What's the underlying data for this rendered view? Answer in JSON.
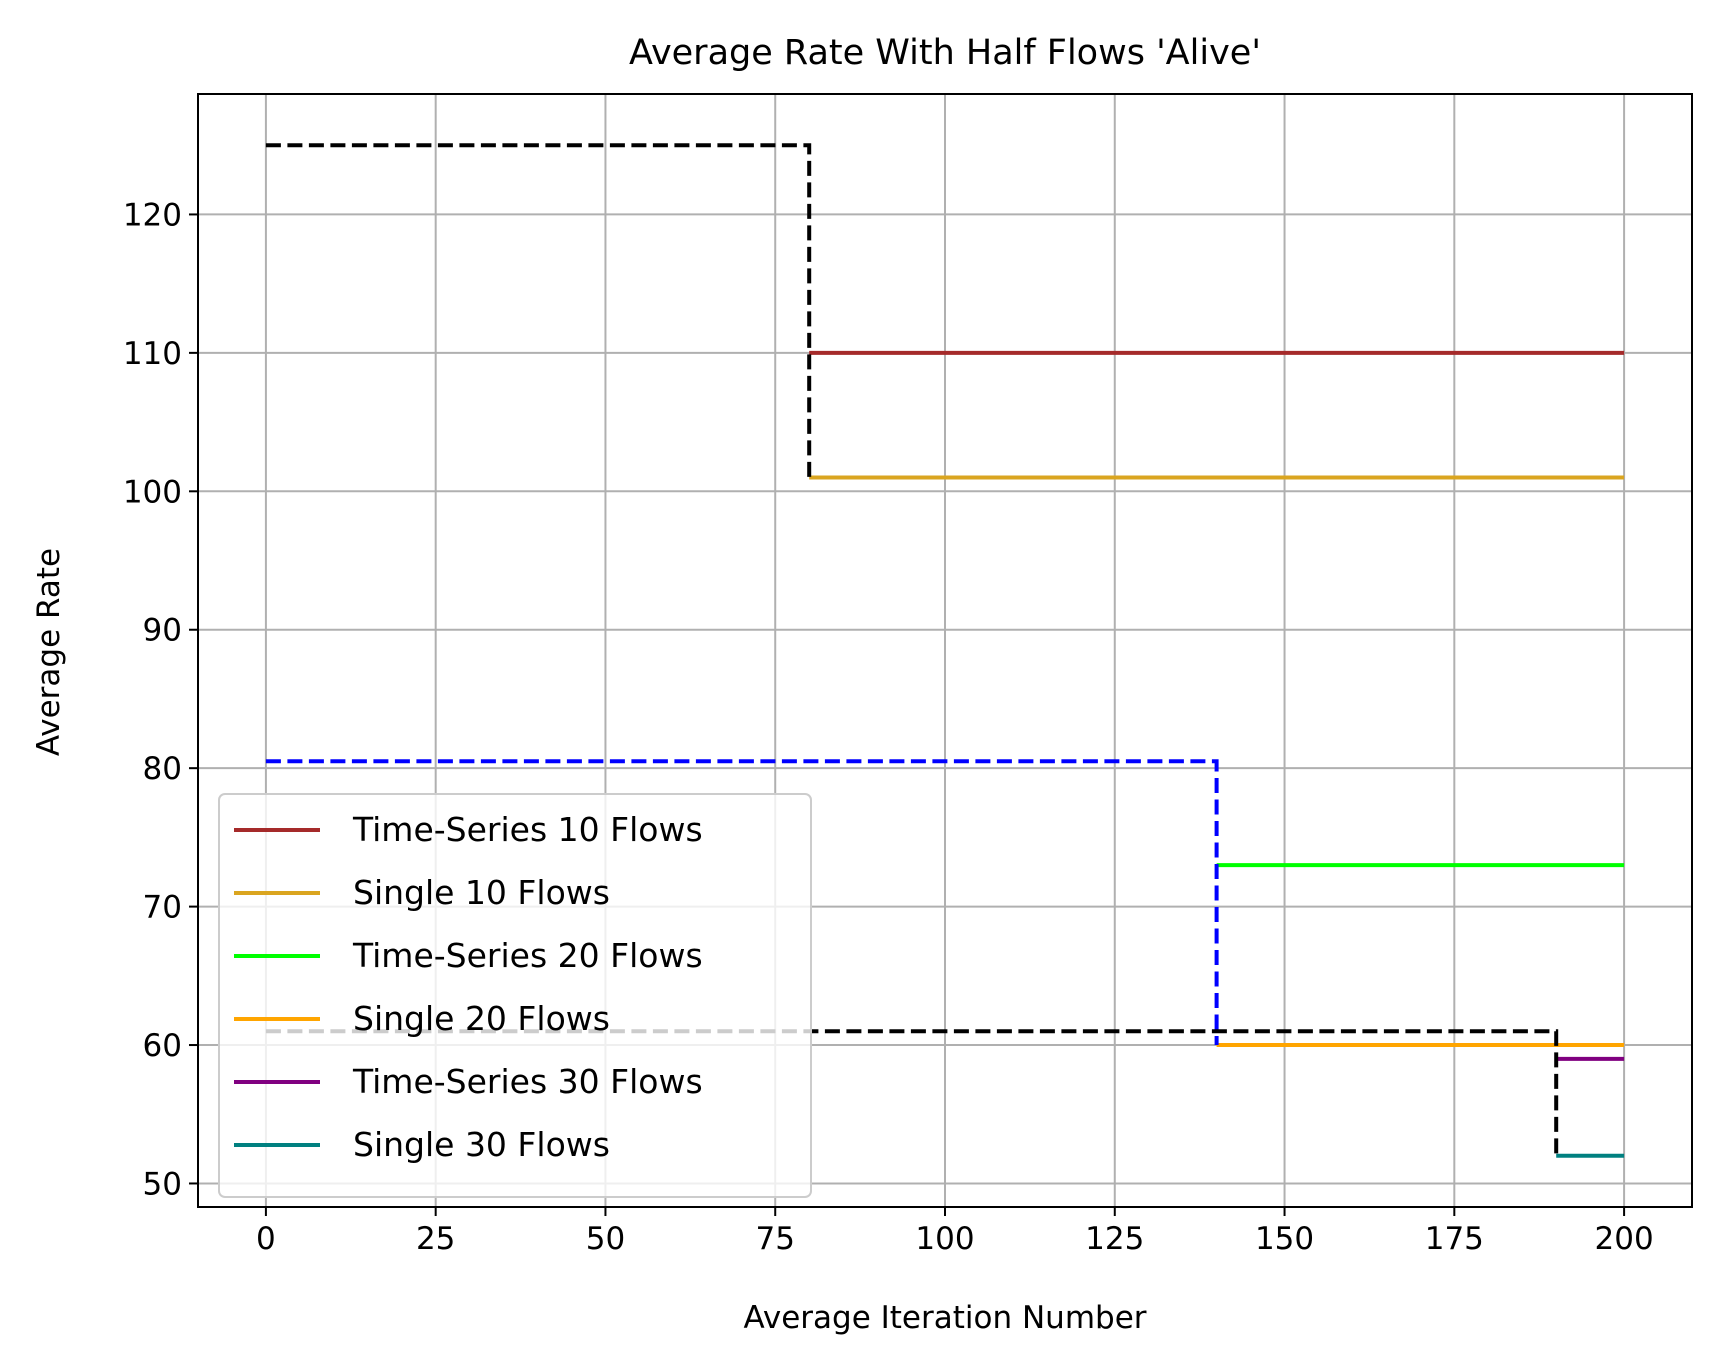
{
  "chart_data": {
    "type": "line",
    "title": "Average Rate With Half Flows 'Alive'",
    "xlabel": "Average Iteration Number",
    "ylabel": "Average Rate",
    "xlim": [
      -10,
      210
    ],
    "ylim": [
      48.3,
      128.7
    ],
    "xticks": [
      0,
      25,
      50,
      75,
      100,
      125,
      150,
      175,
      200
    ],
    "yticks": [
      50,
      60,
      70,
      80,
      90,
      100,
      110,
      120
    ],
    "xtick_labels": [
      "0",
      "25",
      "50",
      "75",
      "100",
      "125",
      "150",
      "175",
      "200"
    ],
    "ytick_labels": [
      "50",
      "60",
      "70",
      "80",
      "90",
      "100",
      "110",
      "120"
    ],
    "grid": true,
    "legend_position": "lower-left",
    "series": [
      {
        "name": "Time-Series 10 Flows",
        "color": "#a52a2a",
        "style": "solid",
        "x": [
          80,
          200
        ],
        "y": [
          110,
          110
        ]
      },
      {
        "name": "Single 10 Flows",
        "color": "#daa520",
        "style": "solid",
        "x": [
          80,
          200
        ],
        "y": [
          101,
          101
        ]
      },
      {
        "name": "Time-Series 20 Flows",
        "color": "#00ff00",
        "style": "solid",
        "x": [
          140,
          200
        ],
        "y": [
          73,
          73
        ]
      },
      {
        "name": "Single 20 Flows",
        "color": "#ffa500",
        "style": "solid",
        "x": [
          140,
          200
        ],
        "y": [
          60,
          60
        ]
      },
      {
        "name": "Time-Series 30 Flows",
        "color": "#800080",
        "style": "solid",
        "x": [
          190,
          200
        ],
        "y": [
          59,
          59
        ]
      },
      {
        "name": "Single 30 Flows",
        "color": "#008080",
        "style": "solid",
        "x": [
          190,
          200
        ],
        "y": [
          52,
          52
        ]
      },
      {
        "color": "#000000",
        "style": "dashed",
        "x": [
          0,
          80,
          80
        ],
        "y": [
          125,
          125,
          101
        ]
      },
      {
        "color": "#0000ff",
        "style": "dashed",
        "x": [
          0,
          140,
          140
        ],
        "y": [
          80.5,
          80.5,
          60
        ]
      },
      {
        "color": "#000000",
        "style": "dashed",
        "x": [
          0,
          190,
          190
        ],
        "y": [
          61,
          61,
          52
        ]
      }
    ]
  }
}
